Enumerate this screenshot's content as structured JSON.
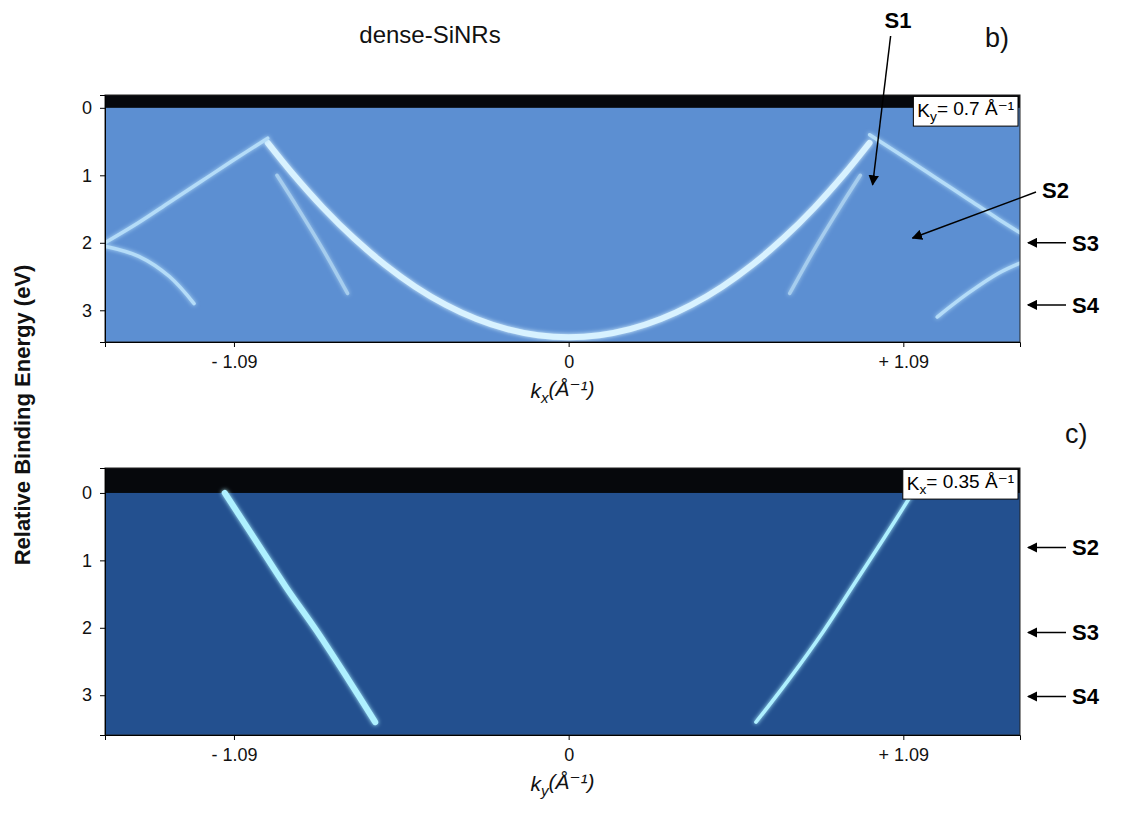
{
  "chart_data": [
    {
      "type": "line",
      "title": "dense-SiNRs",
      "panel": "b)",
      "box_label": "Ky= 0.7 Å⁻¹",
      "x_label": "kx(Å⁻¹)",
      "y_label": "Relative Binding Energy (eV)",
      "xlim": [
        -1.51,
        1.47
      ],
      "ylim": [
        -0.19,
        3.47
      ],
      "xticks": [
        {
          "value": -1.09,
          "label": "- 1.09"
        },
        0,
        {
          "value": 1.09,
          "label": "+ 1.09"
        }
      ],
      "yticks": [
        0,
        1,
        2,
        3
      ],
      "grid": false,
      "series": [
        {
          "color": "#d8f2ff",
          "x": [
            -0.98,
            -0.9,
            -0.8,
            -0.7,
            -0.6,
            -0.5,
            -0.4,
            -0.3,
            -0.2,
            -0.1,
            0,
            0.1,
            0.2,
            0.3,
            0.4,
            0.5,
            0.6,
            0.7,
            0.8,
            0.9,
            0.98
          ],
          "values": [
            0.52,
            0.97,
            1.48,
            1.93,
            2.32,
            2.65,
            2.92,
            3.13,
            3.28,
            3.37,
            3.4,
            3.37,
            3.28,
            3.13,
            2.92,
            2.65,
            2.32,
            1.93,
            1.48,
            0.97,
            0.52
          ]
        },
        {
          "color": "#b4dcf8",
          "x": [
            -0.98,
            -1.1,
            -1.2,
            -1.3,
            -1.4,
            -1.51
          ],
          "values": [
            0.45,
            0.8,
            1.1,
            1.4,
            1.7,
            2.0
          ]
        },
        {
          "color": "#b4dcf8",
          "x": [
            0.98,
            1.1,
            1.2,
            1.3,
            1.4,
            1.47
          ],
          "values": [
            0.4,
            0.75,
            1.05,
            1.35,
            1.65,
            1.85
          ]
        },
        {
          "color": "#a6cdee",
          "x": [
            -0.72,
            -0.8,
            -0.88,
            -0.95
          ],
          "values": [
            2.75,
            2.1,
            1.5,
            1.0
          ]
        },
        {
          "color": "#a6cdee",
          "x": [
            0.72,
            0.8,
            0.88,
            0.95
          ],
          "values": [
            2.75,
            2.1,
            1.5,
            1.0
          ]
        },
        {
          "color": "#b4dcf8",
          "x": [
            -1.51,
            -1.4,
            -1.3,
            -1.22
          ],
          "values": [
            2.05,
            2.2,
            2.5,
            2.9
          ]
        },
        {
          "color": "#b4dcf8",
          "x": [
            1.47,
            1.4,
            1.3,
            1.2
          ],
          "values": [
            2.3,
            2.45,
            2.75,
            3.1
          ]
        }
      ],
      "annotations": [
        {
          "text": "S1",
          "x": 0.99,
          "y": 1.14
        },
        {
          "text": "S2",
          "x": 1.12,
          "y": 1.93
        },
        {
          "text": "S3",
          "y": 2.0
        },
        {
          "text": "S4",
          "y": 2.92
        }
      ]
    },
    {
      "type": "line",
      "panel": "c)",
      "box_label": "Kx= 0.35 Å⁻¹",
      "x_label": "ky(Å⁻¹)",
      "xlim": [
        -1.51,
        1.47
      ],
      "ylim": [
        -0.37,
        3.59
      ],
      "xticks": [
        {
          "value": -1.09,
          "label": "- 1.09"
        },
        0,
        {
          "value": 1.09,
          "label": "+ 1.09"
        }
      ],
      "yticks": [
        0,
        1,
        2,
        3
      ],
      "grid": false,
      "series": [
        {
          "color": "#aef0ff",
          "x": [
            -1.12,
            -1.02,
            -0.92,
            -0.82,
            -0.72,
            -0.63
          ],
          "values": [
            0.0,
            0.7,
            1.4,
            2.05,
            2.75,
            3.4
          ]
        },
        {
          "color": "#aef0ff",
          "x": [
            1.12,
            1.03,
            0.93,
            0.83,
            0.72,
            0.61
          ],
          "values": [
            0.0,
            0.65,
            1.35,
            2.05,
            2.75,
            3.4
          ]
        }
      ],
      "annotations": [
        {
          "text": "S2",
          "y": 0.81
        },
        {
          "text": "S3",
          "y": 2.07
        },
        {
          "text": "S4",
          "y": 3.02
        }
      ]
    }
  ]
}
